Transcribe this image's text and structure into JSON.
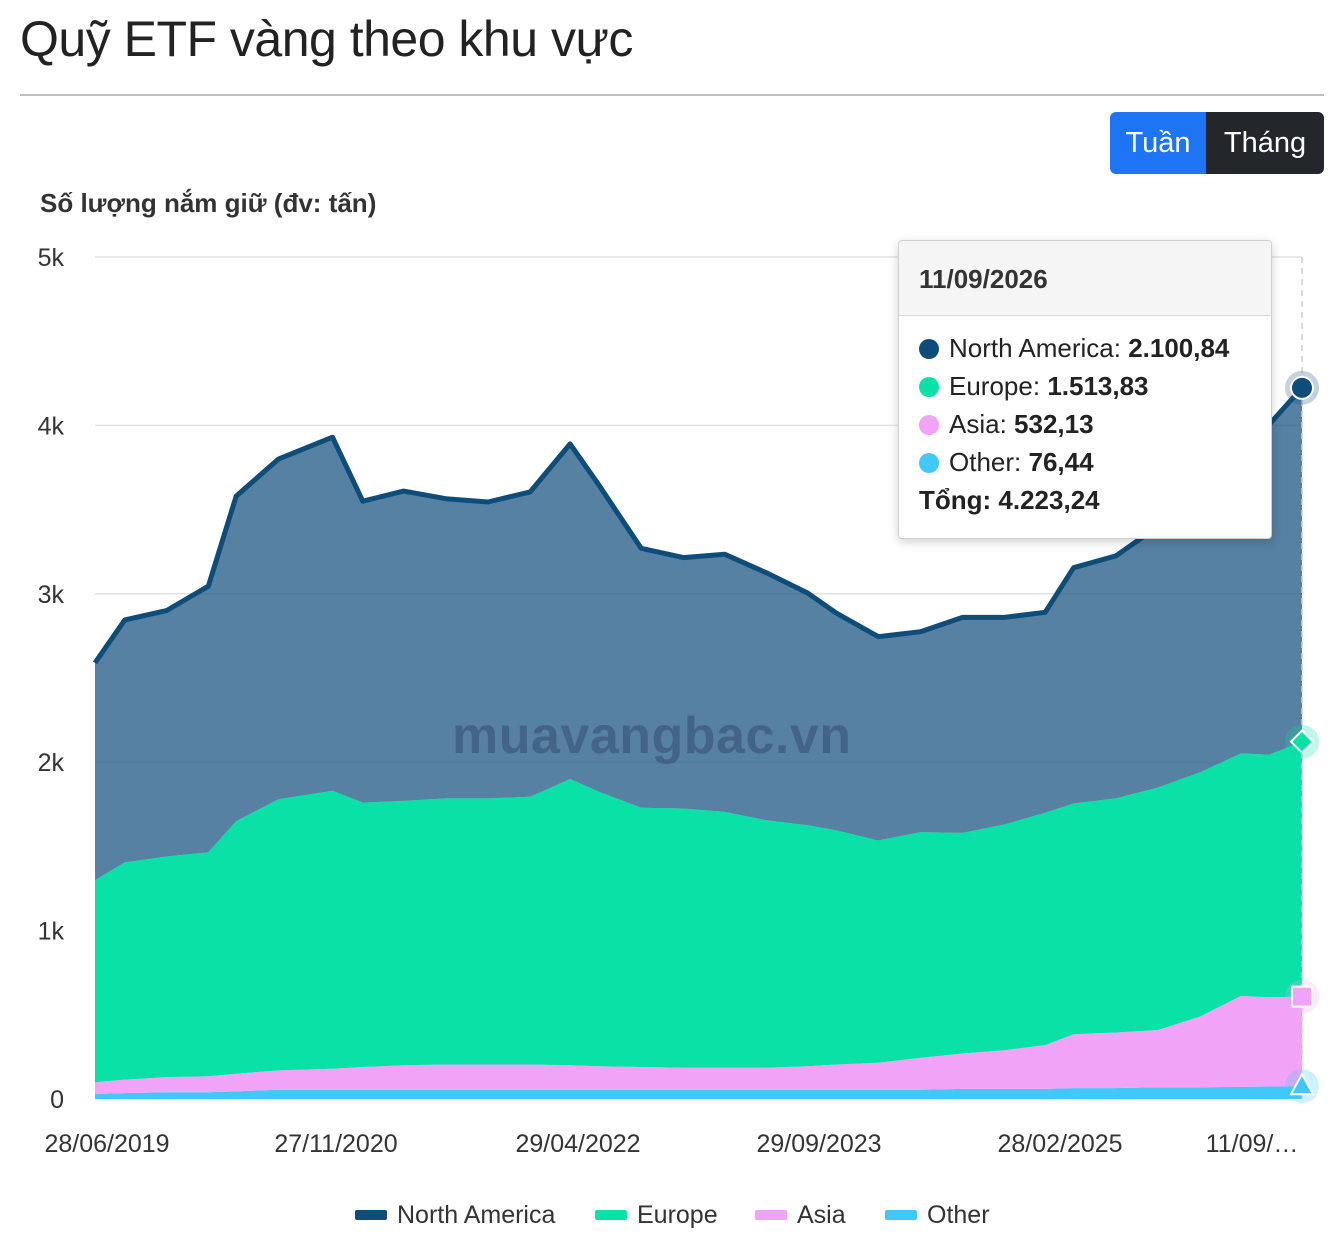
{
  "page": {
    "title": "Quỹ ETF vàng theo khu vực",
    "watermark": "muavangbac.vn"
  },
  "toggle": {
    "week_label": "Tuần",
    "month_label": "Tháng",
    "active": "week",
    "colors": {
      "active": "#1d74f5",
      "inactive": "#23272b"
    }
  },
  "tooltip": {
    "date": "11/09/2026",
    "rows": [
      {
        "label": "North America:",
        "value": "2.100,84",
        "color": "#0e4c7a"
      },
      {
        "label": "Europe:",
        "value": "1.513,83",
        "color": "#09e1a6"
      },
      {
        "label": "Asia:",
        "value": "532,13",
        "color": "#f0a3f7"
      },
      {
        "label": "Other:",
        "value": "76,44",
        "color": "#3fc8f8"
      }
    ],
    "total": "Tổng: 4.223,24"
  },
  "chart_data": {
    "type": "area",
    "stacked": true,
    "ylabel": "Số lượng nắm giữ (đv: tấn)",
    "ylim": [
      0,
      5000
    ],
    "yticks": [
      "0",
      "1k",
      "2k",
      "3k",
      "4k",
      "5k"
    ],
    "xlim": [
      "2019-06-28",
      "2026-09-11"
    ],
    "xticks": [
      "28/06/2019",
      "27/11/2020",
      "29/04/2022",
      "29/09/2023",
      "28/02/2025",
      "11/09/…"
    ],
    "grid": "horizontal",
    "legend": "bottom",
    "x": [
      "2019-06-28",
      "2019-09-01",
      "2019-12-01",
      "2020-03-01",
      "2020-05-01",
      "2020-08-01",
      "2020-11-27",
      "2021-02-01",
      "2021-05-01",
      "2021-08-01",
      "2021-11-01",
      "2022-02-01",
      "2022-04-29",
      "2022-07-01",
      "2022-10-01",
      "2023-01-01",
      "2023-04-01",
      "2023-07-01",
      "2023-09-29",
      "2023-12-01",
      "2024-03-01",
      "2024-06-01",
      "2024-09-01",
      "2024-12-01",
      "2025-02-28",
      "2025-05-01",
      "2025-08-01",
      "2025-11-01",
      "2026-02-01",
      "2026-05-01",
      "2026-07-01",
      "2026-09-11"
    ],
    "series": [
      {
        "name": "Other",
        "color": "#3fc8f8",
        "values": [
          30,
          35,
          40,
          40,
          45,
          55,
          55,
          55,
          55,
          55,
          55,
          55,
          55,
          55,
          55,
          55,
          55,
          55,
          55,
          55,
          55,
          55,
          60,
          60,
          60,
          65,
          65,
          70,
          70,
          72,
          74,
          76
        ]
      },
      {
        "name": "Asia",
        "color": "#f0a3f7",
        "values": [
          70,
          80,
          90,
          95,
          105,
          115,
          125,
          135,
          145,
          150,
          150,
          150,
          145,
          140,
          135,
          130,
          130,
          130,
          140,
          150,
          160,
          190,
          210,
          230,
          260,
          320,
          330,
          340,
          420,
          540,
          530,
          532
        ]
      },
      {
        "name": "Europe",
        "color": "#09e1a6",
        "values": [
          1200,
          1290,
          1310,
          1330,
          1500,
          1610,
          1650,
          1570,
          1570,
          1580,
          1580,
          1590,
          1700,
          1630,
          1540,
          1540,
          1520,
          1470,
          1430,
          1390,
          1320,
          1340,
          1310,
          1340,
          1380,
          1370,
          1390,
          1440,
          1450,
          1440,
          1440,
          1514
        ]
      },
      {
        "name": "North America",
        "color": "#0e4c7a",
        "values": [
          1290,
          1440,
          1460,
          1580,
          1930,
          2020,
          2100,
          1790,
          1840,
          1780,
          1760,
          1810,
          1990,
          1820,
          1540,
          1490,
          1530,
          1470,
          1380,
          1290,
          1210,
          1190,
          1280,
          1230,
          1190,
          1400,
          1440,
          1550,
          1720,
          1910,
          1960,
          2101
        ]
      }
    ]
  }
}
